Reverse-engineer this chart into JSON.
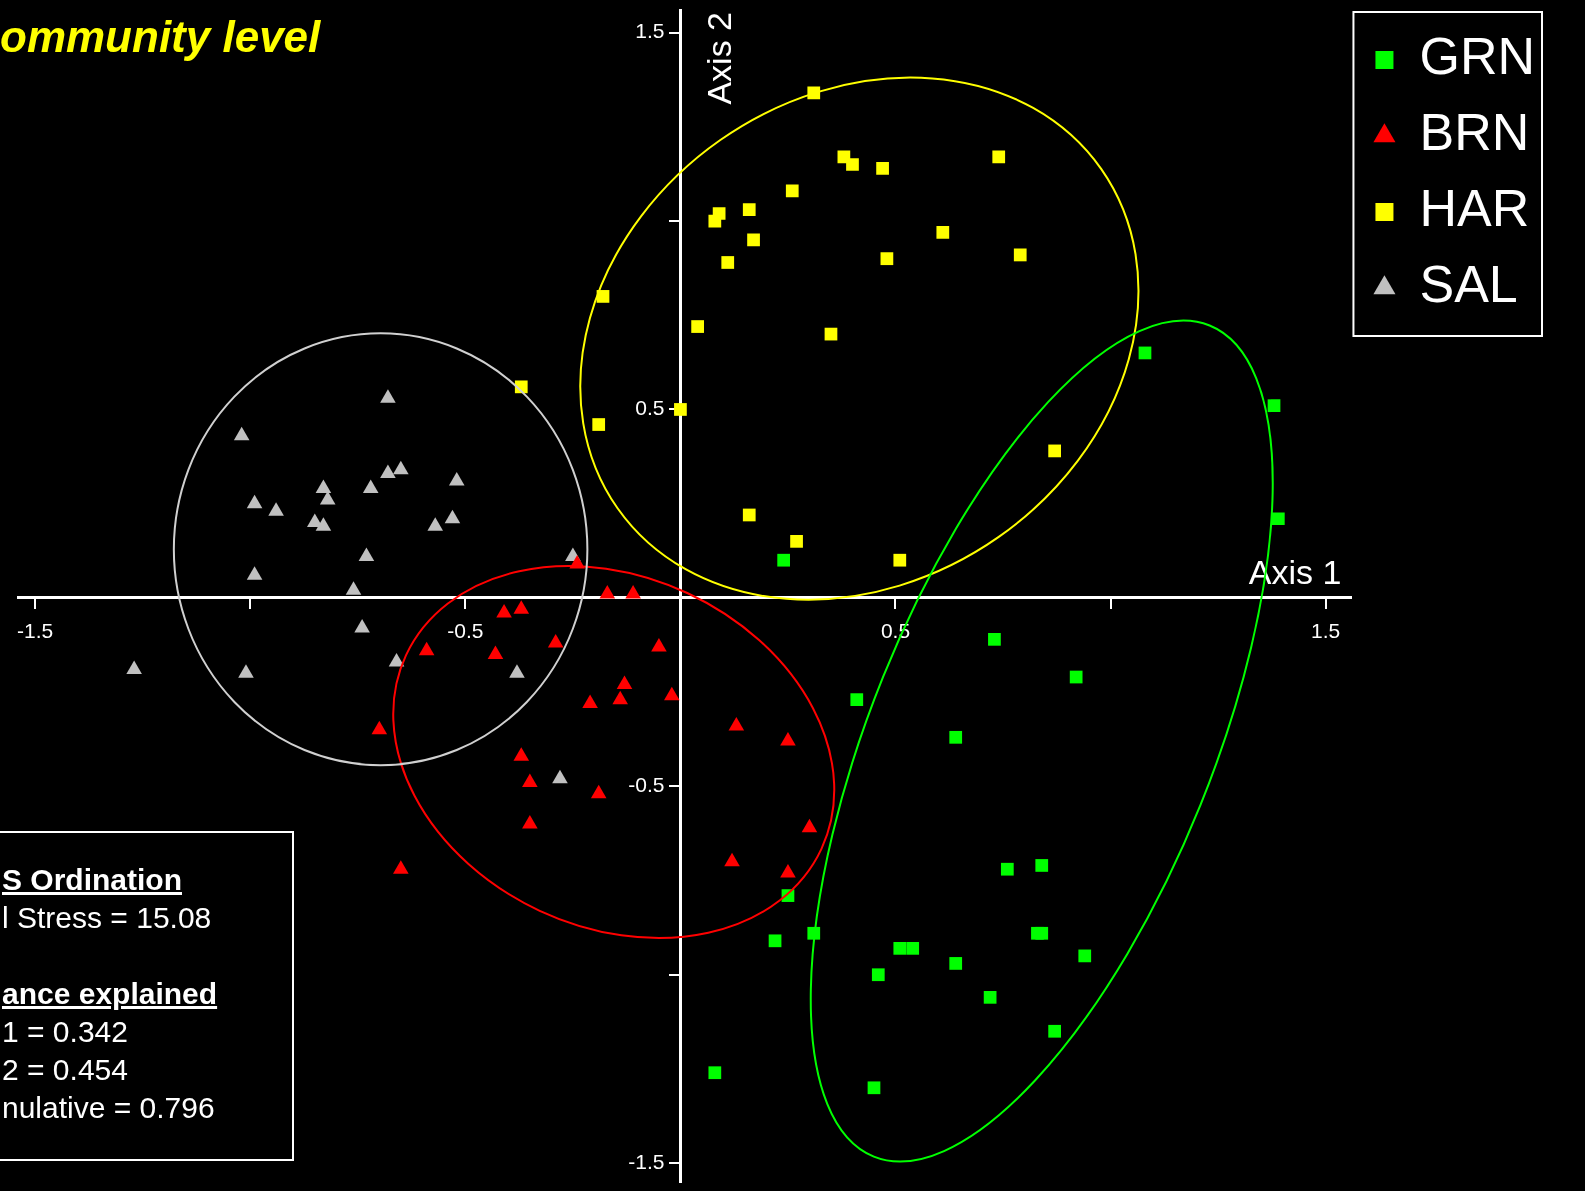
{
  "chart_data": {
    "type": "scatter",
    "title": "ommunity level",
    "xlabel": "Axis 1",
    "ylabel": "Axis 2",
    "annotations": [
      "S Ordination",
      "l Stress = 15.08",
      "ance explained",
      "1 = 0.342",
      "2 = 0.454",
      "nulative = 0.796"
    ],
    "xlim": [
      -1.54,
      1.56
    ],
    "ylim": [
      -1.55,
      1.56
    ],
    "xticks": [
      -1.5,
      {
        "value": -1,
        "label": null
      },
      -0.5,
      {
        "value": 0.5,
        "label": "0.5"
      },
      {
        "value": 1,
        "label": null
      },
      1.5
    ],
    "yticks": [
      -1.5,
      {
        "value": -1,
        "label": null
      },
      -0.5,
      0.5,
      {
        "value": 1,
        "label": null
      },
      1.5
    ],
    "legend": "top right",
    "series": [
      {
        "name": "GRN",
        "color": "#00ff00",
        "marker": "square",
        "x": [
          0.24,
          1.08,
          1.38,
          1.39,
          0.73,
          0.92,
          0.41,
          0.64,
          0.76,
          0.84,
          0.25,
          0.31,
          0.22,
          0.51,
          0.54,
          0.83,
          0.84,
          0.94,
          0.46,
          0.64,
          0.72,
          0.87,
          0.08,
          0.45
        ],
        "values": [
          0.1,
          0.65,
          0.51,
          0.21,
          -0.11,
          -0.21,
          -0.27,
          -0.37,
          -0.72,
          -0.71,
          -0.79,
          -0.89,
          -0.91,
          -0.93,
          -0.93,
          -0.89,
          -0.89,
          -0.95,
          -1.0,
          -0.97,
          -1.06,
          -1.15,
          -1.26,
          -1.3
        ]
      },
      {
        "name": "BRN",
        "color": "#ff0000",
        "marker": "triangle",
        "x": [
          -0.24,
          -0.17,
          -0.11,
          -0.41,
          -0.37,
          -0.29,
          -0.43,
          -0.59,
          -0.05,
          -0.13,
          -0.14,
          -0.21,
          -0.02,
          0.13,
          0.25,
          -0.7,
          -0.37,
          -0.35,
          -0.19,
          -0.35,
          0.3,
          0.12,
          0.25,
          -0.65
        ],
        "values": [
          0.09,
          0.01,
          0.01,
          -0.04,
          -0.03,
          -0.12,
          -0.15,
          -0.14,
          -0.13,
          -0.23,
          -0.27,
          -0.28,
          -0.26,
          -0.34,
          -0.38,
          -0.35,
          -0.42,
          -0.49,
          -0.52,
          -0.6,
          -0.61,
          -0.7,
          -0.73,
          -0.72
        ]
      },
      {
        "name": "HAR",
        "color": "#ffff00",
        "marker": "square",
        "x": [
          0.31,
          0.38,
          0.4,
          0.47,
          0.74,
          0.26,
          0.16,
          0.09,
          0.08,
          0.17,
          0.11,
          0.61,
          0.48,
          0.79,
          -0.18,
          0.04,
          0.35,
          -0.37,
          0.0,
          -0.19,
          0.87,
          0.16,
          0.27,
          0.51
        ],
        "values": [
          1.34,
          1.17,
          1.15,
          1.14,
          1.17,
          1.08,
          1.03,
          1.02,
          1.0,
          0.95,
          0.89,
          0.97,
          0.9,
          0.91,
          0.8,
          0.72,
          0.7,
          0.56,
          0.5,
          0.46,
          0.39,
          0.22,
          0.15,
          0.1
        ]
      },
      {
        "name": "SAL",
        "color": "#c0c0c0",
        "marker": "triangle",
        "x": [
          -0.68,
          -1.02,
          -0.65,
          -0.68,
          -0.52,
          -0.83,
          -0.72,
          -0.82,
          -0.99,
          -0.94,
          -0.85,
          -0.83,
          -0.53,
          -0.57,
          -0.73,
          -0.25,
          -0.99,
          -0.76,
          -0.74,
          -0.66,
          -0.38,
          -1.27,
          -1.01,
          -0.28
        ],
        "values": [
          0.53,
          0.43,
          0.34,
          0.33,
          0.31,
          0.29,
          0.29,
          0.26,
          0.25,
          0.23,
          0.2,
          0.19,
          0.21,
          0.19,
          0.11,
          0.11,
          0.06,
          0.02,
          -0.08,
          -0.17,
          -0.2,
          -0.19,
          -0.2,
          -0.48
        ]
      }
    ]
  }
}
